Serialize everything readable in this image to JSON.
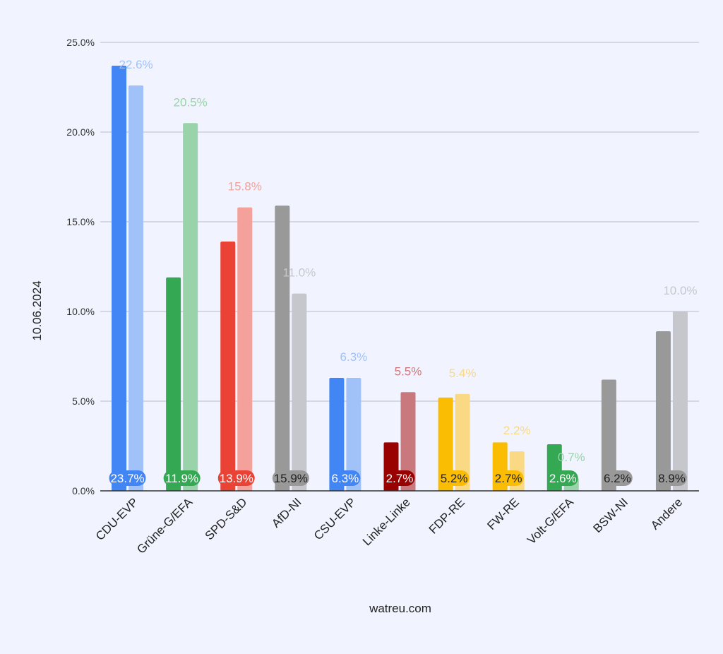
{
  "chart_data": {
    "type": "bar",
    "ylabel": "10.06.2024",
    "xlabel": "watreu.com",
    "ylim": [
      0,
      25
    ],
    "yticks": [
      "0.0%",
      "5.0%",
      "10.0%",
      "15.0%",
      "20.0%",
      "25.0%"
    ],
    "grid": true,
    "categories": [
      "CDU-EVP",
      "Grüne-G/EFA",
      "SPD-S&D",
      "AfD-NI",
      "CSU-EVP",
      "Linke-Linke",
      "FDP-RE",
      "FW-RE",
      "Volt-G/EFA",
      "BSW-NI",
      "Andere"
    ],
    "series": [
      {
        "values": [
          23.7,
          11.9,
          13.9,
          15.9,
          6.3,
          2.7,
          5.2,
          2.7,
          2.6,
          6.2,
          8.9
        ],
        "labels": [
          "23.7%",
          "11.9%",
          "13.9%",
          "15.9%",
          "6.3%",
          "2.7%",
          "5.2%",
          "2.7%",
          "2.6%",
          "6.2%",
          "8.9%"
        ]
      },
      {
        "values": [
          22.6,
          20.5,
          15.8,
          11.0,
          6.3,
          5.5,
          5.4,
          2.2,
          0.7,
          null,
          10.0
        ],
        "labels": [
          "22.6%",
          "20.5%",
          "15.8%",
          "11.0%",
          "6.3%",
          "5.5%",
          "5.4%",
          "2.2%",
          "0.7%",
          "",
          "10.0%"
        ]
      }
    ],
    "colors": {
      "dark": [
        "#4285f4",
        "#34a853",
        "#ea4335",
        "#999999",
        "#4285f4",
        "#990000",
        "#fbbc04",
        "#fbbc04",
        "#34a853",
        "#999999",
        "#999999"
      ],
      "light": [
        "#a0c2f9",
        "#99d3a9",
        "#f3a19a",
        "#c6c7cd",
        "#a0c2f9",
        "#c9787d",
        "#fad985",
        "#fad985",
        "#99d3a9",
        "#c6c7cd",
        "#c6c7cd"
      ],
      "label_text": [
        "#ffffff",
        "#ffffff",
        "#ffffff",
        "#222222",
        "#ffffff",
        "#ffffff",
        "#222222",
        "#222222",
        "#ffffff",
        "#222222",
        "#222222"
      ],
      "axis": "#333333",
      "grid": "#b7bacb"
    }
  }
}
